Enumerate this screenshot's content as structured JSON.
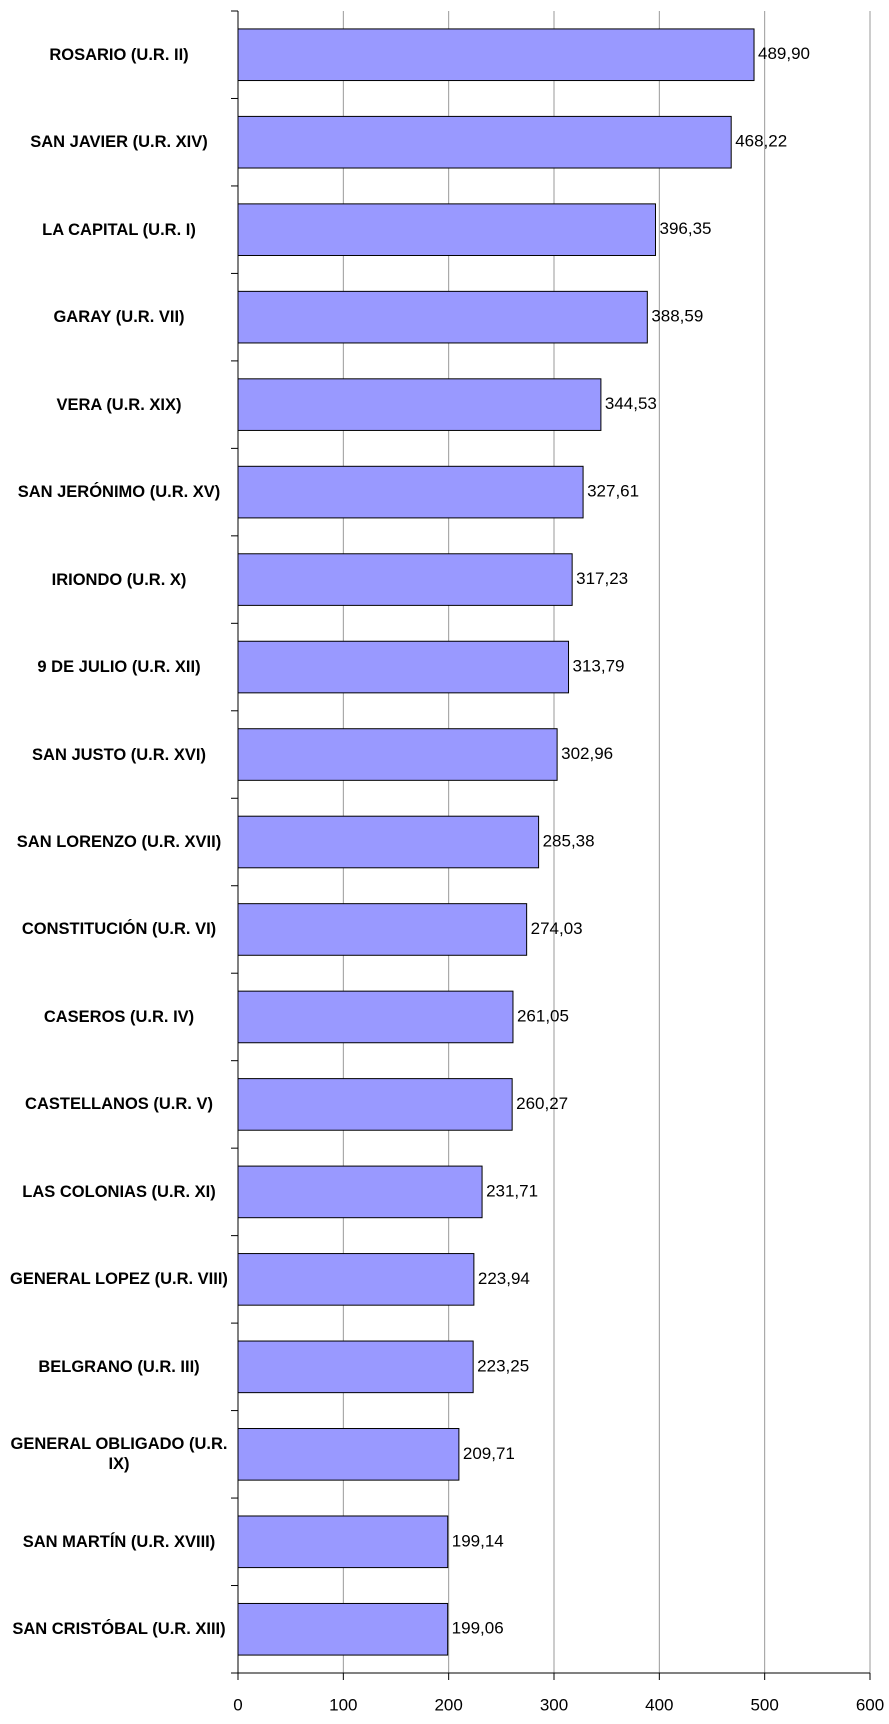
{
  "chart_data": {
    "type": "barh",
    "categories": [
      "ROSARIO (U.R. II)",
      "SAN JAVIER (U.R. XIV)",
      "LA CAPITAL (U.R. I)",
      "GARAY (U.R. VII)",
      "VERA (U.R. XIX)",
      "SAN JERÓNIMO (U.R. XV)",
      "IRIONDO (U.R. X)",
      "9 DE JULIO (U.R. XII)",
      "SAN JUSTO (U.R. XVI)",
      "SAN LORENZO (U.R. XVII)",
      "CONSTITUCIÓN (U.R. VI)",
      "CASEROS (U.R. IV)",
      "CASTELLANOS (U.R. V)",
      "LAS COLONIAS (U.R. XI)",
      "GENERAL LOPEZ (U.R. VIII)",
      "BELGRANO (U.R. III)",
      "GENERAL OBLIGADO (U.R. IX)",
      "SAN MARTÍN (U.R. XVIII)",
      "SAN CRISTÓBAL (U.R. XIII)"
    ],
    "values": [
      489.9,
      468.22,
      396.35,
      388.59,
      344.53,
      327.61,
      317.23,
      313.79,
      302.96,
      285.38,
      274.03,
      261.05,
      260.27,
      231.71,
      223.94,
      223.25,
      209.71,
      199.14,
      199.06
    ],
    "value_labels": [
      "489,90",
      "468,22",
      "396,35",
      "388,59",
      "344,53",
      "327,61",
      "317,23",
      "313,79",
      "302,96",
      "285,38",
      "274,03",
      "261,05",
      "260,27",
      "231,71",
      "223,94",
      "223,25",
      "209,71",
      "199,14",
      "199,06"
    ],
    "color": "#9999ff",
    "xlim": [
      0,
      600
    ],
    "xticks": [
      0,
      100,
      200,
      300,
      400,
      500,
      600
    ],
    "grid": true
  }
}
